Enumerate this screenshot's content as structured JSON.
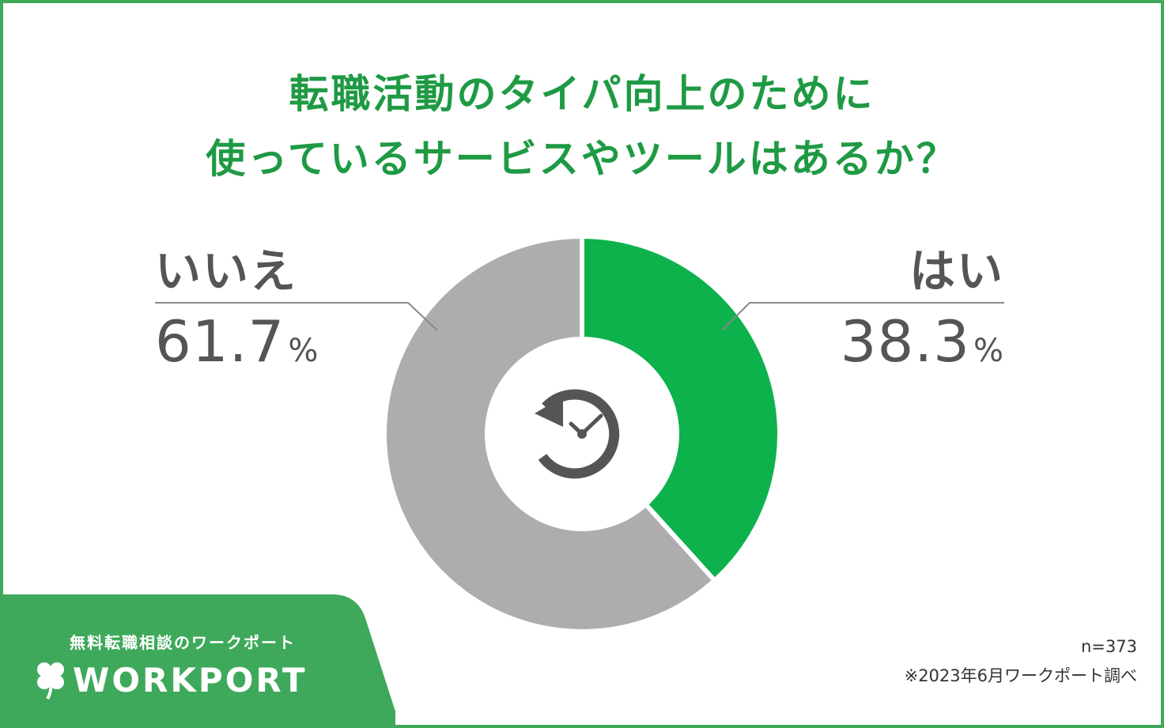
{
  "title_line1": "転職活動のタイパ向上のために",
  "title_line2": "使っているサービスやツールはあるか？",
  "colors": {
    "accent_green": "#1f9a44",
    "yes_slice": "#0db24c",
    "no_slice": "#adadad",
    "brand_green": "#3fa95b",
    "text_gray": "#555555"
  },
  "chart_data": {
    "type": "pie",
    "variant": "donut",
    "slices": [
      {
        "label": "はい",
        "value": 38.3,
        "display": "38.3",
        "unit": "%",
        "color": "#0db24c"
      },
      {
        "label": "いいえ",
        "value": 61.7,
        "display": "61.7",
        "unit": "%",
        "color": "#adadad"
      }
    ],
    "center_icon": "clock-refresh-icon"
  },
  "footer": {
    "sample_size": "n=373",
    "source": "※2023年6月ワークポート調べ"
  },
  "brand": {
    "subtitle": "無料転職相談のワークポート",
    "name": "WORKPORT",
    "logo_icon": "clover-icon"
  }
}
